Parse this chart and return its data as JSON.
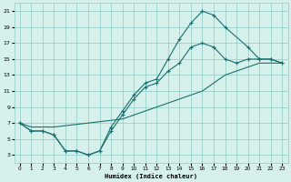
{
  "xlabel": "Humidex (Indice chaleur)",
  "bg_color": "#d6f0eb",
  "grid_color": "#8eccc5",
  "line_color": "#1a7070",
  "xlim": [
    -0.5,
    23.5
  ],
  "ylim": [
    2,
    22
  ],
  "xticks": [
    0,
    1,
    2,
    3,
    4,
    5,
    6,
    7,
    8,
    9,
    10,
    11,
    12,
    13,
    14,
    15,
    16,
    17,
    18,
    19,
    20,
    21,
    22,
    23
  ],
  "yticks": [
    3,
    5,
    7,
    9,
    11,
    13,
    15,
    17,
    19,
    21
  ],
  "line1_x": [
    0,
    1,
    2,
    3,
    4,
    5,
    6,
    7,
    8,
    9,
    10,
    11,
    12,
    13,
    14,
    15,
    16,
    17,
    18,
    20,
    21,
    22,
    23
  ],
  "line1_y": [
    7,
    6,
    6,
    5.5,
    3.5,
    3.5,
    3.0,
    3.5,
    6.5,
    8.5,
    10.5,
    12,
    12.5,
    15,
    17.5,
    19.5,
    21,
    20.5,
    19,
    16.5,
    15,
    15,
    14.5
  ],
  "line2_x": [
    0,
    1,
    2,
    3,
    4,
    5,
    6,
    7,
    8,
    9,
    10,
    11,
    12,
    13,
    14,
    15,
    16,
    17,
    18,
    19,
    20,
    21,
    22,
    23
  ],
  "line2_y": [
    7,
    6,
    6,
    5.5,
    3.5,
    3.5,
    3.0,
    3.5,
    6.0,
    8.0,
    10.0,
    11.5,
    12.0,
    13.5,
    14.5,
    16.5,
    17,
    16.5,
    15,
    14.5,
    15.0,
    15.0,
    15.0,
    14.5
  ],
  "line3_x": [
    0,
    1,
    2,
    3,
    9,
    10,
    11,
    12,
    13,
    14,
    15,
    16,
    17,
    18,
    19,
    20,
    21,
    22,
    23
  ],
  "line3_y": [
    7,
    6.5,
    6.5,
    6.5,
    7.5,
    8.0,
    8.5,
    9.0,
    9.5,
    10.0,
    10.5,
    11.0,
    12.0,
    13.0,
    13.5,
    14.0,
    14.5,
    14.5,
    14.5
  ]
}
